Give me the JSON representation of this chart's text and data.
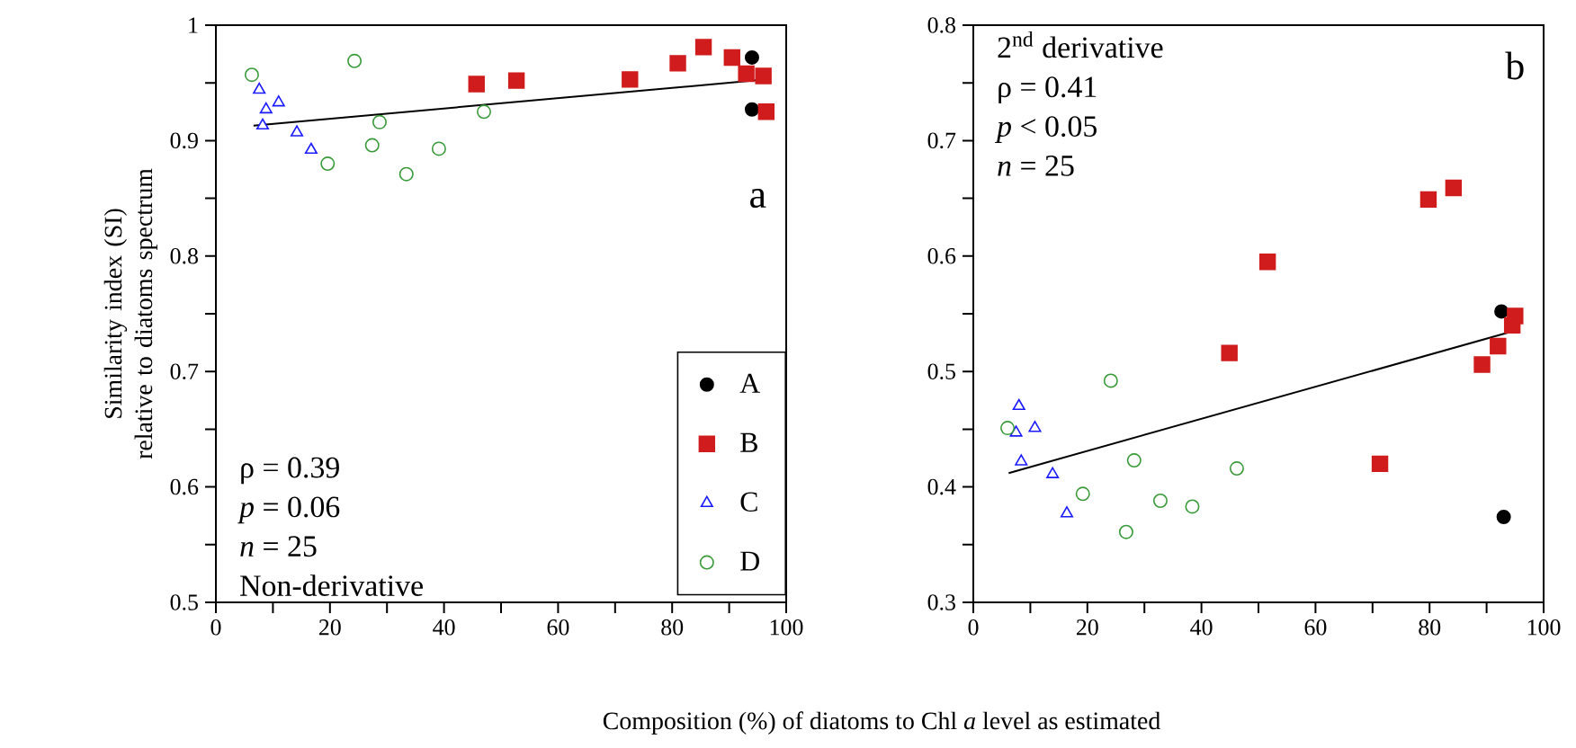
{
  "chart_data": [
    {
      "type": "scatter",
      "ylabel": "Similarity index (SI) relative to diatoms spectrum",
      "xlabel": "Composition (%) of diatoms to Chl *a* level as estimated",
      "xlim": [
        0,
        100
      ],
      "xticks": [
        0,
        20,
        40,
        60,
        80,
        100
      ],
      "ylim": [
        0.5,
        1
      ],
      "yticks": [
        0.5,
        0.6,
        0.7,
        0.8,
        0.9,
        1
      ],
      "legend": "bottom right",
      "grid": false,
      "annotations": [
        "a",
        "ρ = 0.39",
        "*p* = 0.06",
        "*n* = 25",
        "Non-derivative"
      ],
      "series": [
        {
          "name": "A",
          "color": "#000000",
          "marker": "circle",
          "x": [
            94,
            94
          ],
          "values": [
            0.972,
            0.927
          ]
        },
        {
          "name": "B",
          "color": "#d01c1c",
          "marker": "square",
          "x": [
            45.7,
            52.7,
            72.6,
            81,
            85.5,
            90.5,
            93,
            96,
            96.5
          ],
          "values": [
            0.949,
            0.952,
            0.953,
            0.967,
            0.981,
            0.972,
            0.958,
            0.956,
            0.925
          ]
        },
        {
          "name": "C",
          "color": "#1a1aff",
          "marker": "triangle",
          "x": [
            7.6,
            11,
            8.8,
            8.2,
            14.2,
            16.7
          ],
          "values": [
            0.944,
            0.933,
            0.927,
            0.913,
            0.907,
            0.892
          ]
        },
        {
          "name": "D",
          "color": "#3a9a3a",
          "marker": "circle",
          "x": [
            6.3,
            24.3,
            28.7,
            27.4,
            19.6,
            33.4,
            39.1,
            47
          ],
          "values": [
            0.957,
            0.969,
            0.916,
            0.896,
            0.88,
            0.871,
            0.893,
            0.925
          ]
        },
        {
          "type": "line",
          "color": "#000000",
          "marker": "none",
          "x": [
            6.6,
            96.5
          ],
          "values": [
            0.913,
            0.953
          ]
        }
      ]
    },
    {
      "type": "scatter",
      "xlim": [
        0,
        100
      ],
      "xticks": [
        0,
        20,
        40,
        60,
        80,
        100
      ],
      "ylim": [
        0.3,
        0.8
      ],
      "yticks": [
        0.3,
        0.4,
        0.5,
        0.6,
        0.7,
        0.8
      ],
      "grid": false,
      "annotations": [
        "b",
        "2$^{nd}$ derivative",
        "ρ = 0.41",
        "*p* < 0.05",
        "*n* = 25"
      ],
      "series": [
        {
          "color": "#000000",
          "marker": "circle",
          "x": [
            92.6,
            93
          ],
          "values": [
            0.552,
            0.374
          ]
        },
        {
          "color": "#d01c1c",
          "marker": "square",
          "x": [
            51.6,
            79.8,
            84.2,
            44.9,
            71.3,
            89.2,
            92,
            94.5,
            95
          ],
          "values": [
            0.595,
            0.649,
            0.659,
            0.516,
            0.42,
            0.506,
            0.522,
            0.54,
            0.548
          ]
        },
        {
          "color": "#1a1aff",
          "marker": "triangle",
          "x": [
            8,
            7.5,
            10.8,
            8.4,
            13.9,
            16.4
          ],
          "values": [
            0.47,
            0.447,
            0.451,
            0.422,
            0.411,
            0.377
          ]
        },
        {
          "color": "#3a9a3a",
          "marker": "circle",
          "x": [
            6,
            24.1,
            28.2,
            19.2,
            26.8,
            32.8,
            38.4,
            46.2
          ],
          "values": [
            0.451,
            0.492,
            0.423,
            0.394,
            0.361,
            0.388,
            0.383,
            0.416
          ]
        },
        {
          "type": "line",
          "color": "#000000",
          "marker": "none",
          "x": [
            6.2,
            94.7
          ],
          "values": [
            0.412,
            0.535
          ]
        }
      ]
    }
  ]
}
